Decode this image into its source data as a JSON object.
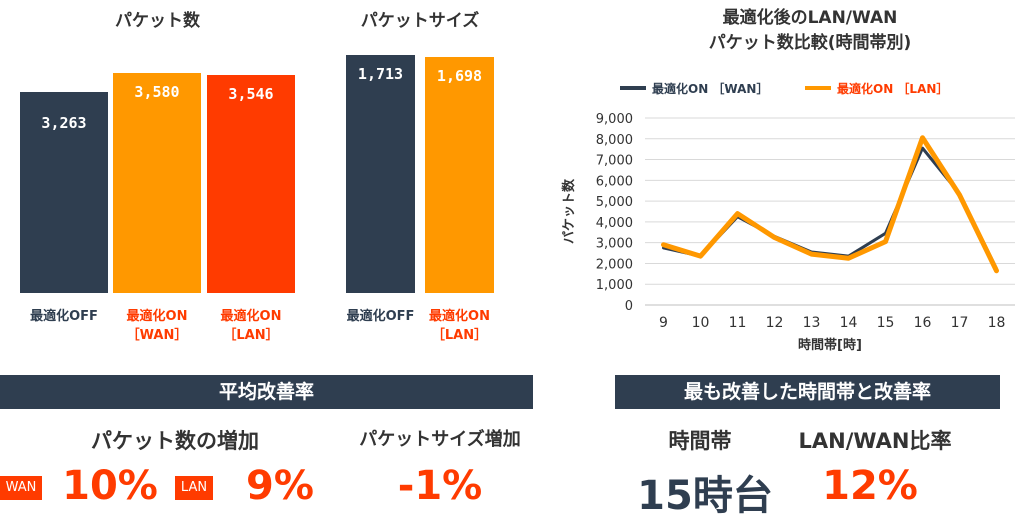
{
  "colors": {
    "navy": "#2f3e50",
    "orange": "#ff9800",
    "red": "#ff3b00",
    "wan_line": "#2f3e50",
    "lan_line": "#ff9800"
  },
  "chart_data": [
    {
      "type": "bar",
      "title": "パケット数",
      "categories": [
        "最適化OFF",
        "最適化ON\n［WAN］",
        "最適化ON\n［LAN］"
      ],
      "category_lines": [
        [
          "最適化OFF"
        ],
        [
          "最適化ON",
          "［WAN］"
        ],
        [
          "最適化ON",
          "［LAN］"
        ]
      ],
      "values": [
        3263,
        3580,
        3546
      ],
      "labels": [
        "3,263",
        "3,580",
        "3,546"
      ],
      "colors": [
        "#2f3e50",
        "#ff9800",
        "#ff3b00"
      ],
      "label_colors": [
        "#2f3e50",
        "#ff3b00",
        "#ff3b00"
      ]
    },
    {
      "type": "bar",
      "title": "パケットサイズ",
      "categories": [
        "最適化OFF",
        "最適化ON\n［LAN］"
      ],
      "category_lines": [
        [
          "最適化OFF"
        ],
        [
          "最適化ON",
          "［LAN］"
        ]
      ],
      "values": [
        1713,
        1698
      ],
      "labels": [
        "1,713",
        "1,698"
      ],
      "colors": [
        "#2f3e50",
        "#ff9800"
      ],
      "label_colors": [
        "#2f3e50",
        "#ff3b00"
      ]
    },
    {
      "type": "line",
      "title_lines": [
        "最適化後のLAN/WAN",
        "パケット数比較(時間帯別)"
      ],
      "xlabel": "時間帯[時]",
      "ylabel": "パケット数",
      "x": [
        9,
        10,
        11,
        12,
        13,
        14,
        15,
        16,
        17,
        18
      ],
      "ylim": [
        0,
        9000
      ],
      "yticks": [
        "0",
        "1,000",
        "2,000",
        "3,000",
        "4,000",
        "5,000",
        "6,000",
        "7,000",
        "8,000",
        "9,000"
      ],
      "grid": true,
      "legend": "top",
      "series": [
        {
          "name": "最適化ON ［WAN］",
          "values": [
            2750,
            2350,
            4250,
            3300,
            2550,
            2350,
            3450,
            7550,
            5350,
            1750
          ],
          "color": "#2f3e50"
        },
        {
          "name": "最適化ON ［LAN］",
          "values": [
            2900,
            2350,
            4400,
            3250,
            2450,
            2250,
            3050,
            8050,
            5300,
            1650
          ],
          "color": "#ff9800"
        }
      ]
    }
  ],
  "summary_left": {
    "banner": "平均改善率",
    "packet_count_heading": "パケット数の増加",
    "wan_badge": "WAN",
    "wan_value": "10%",
    "lan_badge": "LAN",
    "lan_value": "9%",
    "packet_size_heading": "パケットサイズ増加",
    "packet_size_value": "-1%"
  },
  "summary_right": {
    "banner": "最も改善した時間帯と改善率",
    "time_heading": "時間帯",
    "time_value": "15時台",
    "ratio_heading": "LAN/WAN比率",
    "ratio_value": "12%"
  }
}
